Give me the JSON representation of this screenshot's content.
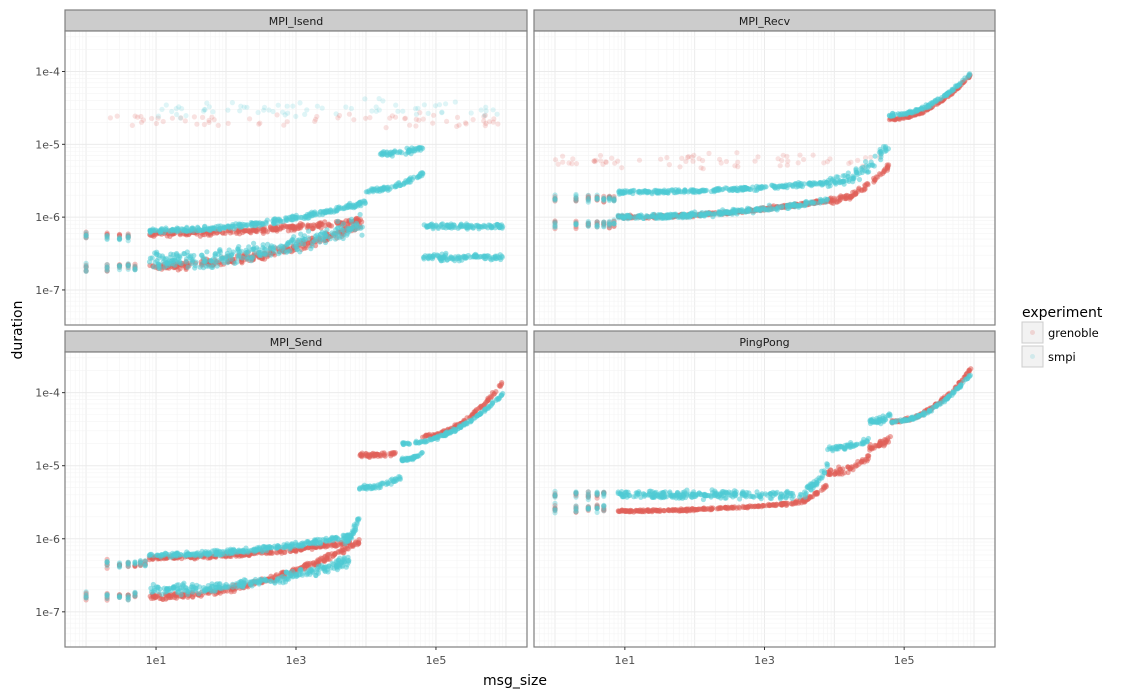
{
  "chart_data": {
    "type": "scatter",
    "title": "",
    "xlabel": "msg_size",
    "ylabel": "duration",
    "x_scale": "log10",
    "y_scale": "log10",
    "xlim": [
      0.5,
      2000000
    ],
    "ylim": [
      3.3e-08,
      0.00036
    ],
    "x_ticks": [
      {
        "value": 10,
        "label": "1e1"
      },
      {
        "value": 1000,
        "label": "1e3"
      },
      {
        "value": 100000,
        "label": "1e5"
      }
    ],
    "y_ticks": [
      {
        "value": 0.0001,
        "label": "1e-4"
      },
      {
        "value": 1e-05,
        "label": "1e-5"
      },
      {
        "value": 1e-06,
        "label": "1e-6"
      },
      {
        "value": 1e-07,
        "label": "1e-7"
      }
    ],
    "grid": true,
    "legend": {
      "title": "experiment",
      "position": "right",
      "entries": [
        {
          "name": "grenoble",
          "color": "#E0605A"
        },
        {
          "name": "smpi",
          "color": "#4FCAD3"
        }
      ]
    },
    "facets": [
      {
        "name": "MPI_Isend",
        "bands": [
          {
            "series": "grenoble",
            "x_from": 8,
            "x_to": 9000,
            "y_from": 6e-07,
            "y_to": 9e-07,
            "spread": 0.06
          },
          {
            "series": "grenoble",
            "x_from": 8,
            "x_to": 9000,
            "y_from": 2.1e-07,
            "y_to": 8e-07,
            "spread": 0.08
          },
          {
            "series": "grenoble",
            "x_from": 2,
            "x_to": 900000,
            "y_from": 2.1e-05,
            "y_to": 2.1e-05,
            "spread": 0.15,
            "sparse": true
          },
          {
            "series": "smpi",
            "x_from": 8,
            "x_to": 10000,
            "y_from": 6.5e-07,
            "y_to": 1.6e-06,
            "spread": 0.05
          },
          {
            "series": "smpi",
            "x_from": 8,
            "x_to": 9000,
            "y_from": 2.5e-07,
            "y_to": 8e-07,
            "spread": 0.18
          },
          {
            "series": "smpi",
            "x_from": 10000,
            "x_to": 65000,
            "y_from": 2.3e-06,
            "y_to": 4e-06,
            "spread": 0.05
          },
          {
            "series": "smpi",
            "x_from": 16000,
            "x_to": 65000,
            "y_from": 7.5e-06,
            "y_to": 9e-06,
            "spread": 0.05
          },
          {
            "series": "smpi",
            "x_from": 65000,
            "x_to": 900000,
            "y_from": 7.5e-07,
            "y_to": 7.5e-07,
            "spread": 0.05
          },
          {
            "series": "smpi",
            "x_from": 65000,
            "x_to": 900000,
            "y_from": 2.8e-07,
            "y_to": 2.8e-07,
            "spread": 0.06
          },
          {
            "series": "smpi",
            "x_from": 10,
            "x_to": 900000,
            "y_from": 3e-05,
            "y_to": 3e-05,
            "spread": 0.2,
            "sparse": true
          }
        ],
        "small_sizes": [
          {
            "x": 1,
            "y": 2e-07
          },
          {
            "x": 2,
            "y": 2e-07
          },
          {
            "x": 3,
            "y": 2.1e-07
          },
          {
            "x": 4,
            "y": 2.1e-07
          },
          {
            "x": 5,
            "y": 2.1e-07
          },
          {
            "x": 1,
            "y": 5.5e-07
          },
          {
            "x": 2,
            "y": 5.5e-07
          },
          {
            "x": 3,
            "y": 5.5e-07
          },
          {
            "x": 4,
            "y": 5.5e-07
          }
        ]
      },
      {
        "name": "MPI_Recv",
        "bands": [
          {
            "series": "grenoble",
            "x_from": 8,
            "x_to": 8000,
            "y_from": 1e-06,
            "y_to": 1.7e-06,
            "spread": 0.03
          },
          {
            "series": "grenoble",
            "x_from": 8000,
            "x_to": 60000,
            "y_from": 1.7e-06,
            "y_to": 5e-06,
            "spread": 0.06
          },
          {
            "series": "grenoble",
            "x_from": 60000,
            "x_to": 900000,
            "y_from": 2.2e-05,
            "y_to": 9e-05,
            "spread": 0.02
          },
          {
            "series": "smpi",
            "x_from": 8,
            "x_to": 8000,
            "y_from": 2.2e-06,
            "y_to": 3e-06,
            "spread": 0.04
          },
          {
            "series": "smpi",
            "x_from": 8,
            "x_to": 8000,
            "y_from": 1e-06,
            "y_to": 1.7e-06,
            "spread": 0.05
          },
          {
            "series": "smpi",
            "x_from": 8000,
            "x_to": 60000,
            "y_from": 3e-06,
            "y_to": 1e-05,
            "spread": 0.12
          },
          {
            "series": "smpi",
            "x_from": 60000,
            "x_to": 900000,
            "y_from": 2.5e-05,
            "y_to": 9.5e-05,
            "spread": 0.03
          },
          {
            "series": "grenoble",
            "x_from": 1,
            "x_to": 50000,
            "y_from": 6e-06,
            "y_to": 6e-06,
            "spread": 0.15,
            "sparse": true
          }
        ],
        "small_sizes": [
          {
            "x": 1,
            "y": 1.8e-06
          },
          {
            "x": 2,
            "y": 1.8e-06
          },
          {
            "x": 3,
            "y": 1.8e-06
          },
          {
            "x": 4,
            "y": 1.8e-06
          },
          {
            "x": 5,
            "y": 1.8e-06
          },
          {
            "x": 6,
            "y": 1.8e-06
          },
          {
            "x": 7,
            "y": 1.8e-06
          },
          {
            "x": 1,
            "y": 8e-07
          },
          {
            "x": 2,
            "y": 8e-07
          },
          {
            "x": 3,
            "y": 8e-07
          },
          {
            "x": 4,
            "y": 8e-07
          },
          {
            "x": 5,
            "y": 8e-07
          },
          {
            "x": 6,
            "y": 8e-07
          },
          {
            "x": 7,
            "y": 8e-07
          }
        ]
      },
      {
        "name": "MPI_Send",
        "bands": [
          {
            "series": "grenoble",
            "x_from": 8,
            "x_to": 6000,
            "y_from": 5.5e-07,
            "y_to": 9e-07,
            "spread": 0.04
          },
          {
            "series": "grenoble",
            "x_from": 8,
            "x_to": 8000,
            "y_from": 1.6e-07,
            "y_to": 9e-07,
            "spread": 0.06
          },
          {
            "series": "grenoble",
            "x_from": 8000,
            "x_to": 30000,
            "y_from": 1.4e-05,
            "y_to": 1.5e-05,
            "spread": 0.04
          },
          {
            "series": "grenoble",
            "x_from": 60000,
            "x_to": 900000,
            "y_from": 2.5e-05,
            "y_to": 0.00014,
            "spread": 0.04
          },
          {
            "series": "smpi",
            "x_from": 8,
            "x_to": 6000,
            "y_from": 6e-07,
            "y_to": 1.1e-06,
            "spread": 0.05
          },
          {
            "series": "smpi",
            "x_from": 8,
            "x_to": 6000,
            "y_from": 2e-07,
            "y_to": 5e-07,
            "spread": 0.1
          },
          {
            "series": "smpi",
            "x_from": 5000,
            "x_to": 8000,
            "y_from": 1e-06,
            "y_to": 2e-06,
            "spread": 0.08
          },
          {
            "series": "smpi",
            "x_from": 8000,
            "x_to": 32000,
            "y_from": 5e-06,
            "y_to": 7e-06,
            "spread": 0.05
          },
          {
            "series": "smpi",
            "x_from": 32000,
            "x_to": 65000,
            "y_from": 1.2e-05,
            "y_to": 1.5e-05,
            "spread": 0.03
          },
          {
            "series": "smpi",
            "x_from": 32000,
            "x_to": 900000,
            "y_from": 2e-05,
            "y_to": 9.5e-05,
            "spread": 0.03
          }
        ],
        "small_sizes": [
          {
            "x": 1,
            "y": 1.6e-07
          },
          {
            "x": 2,
            "y": 1.6e-07
          },
          {
            "x": 3,
            "y": 1.6e-07
          },
          {
            "x": 4,
            "y": 1.6e-07
          },
          {
            "x": 5,
            "y": 1.7e-07
          },
          {
            "x": 2,
            "y": 4.5e-07
          },
          {
            "x": 3,
            "y": 4.5e-07
          },
          {
            "x": 4,
            "y": 4.5e-07
          },
          {
            "x": 5,
            "y": 4.5e-07
          },
          {
            "x": 6,
            "y": 4.5e-07
          },
          {
            "x": 7,
            "y": 4.5e-07
          }
        ]
      },
      {
        "name": "PingPong",
        "bands": [
          {
            "series": "grenoble",
            "x_from": 8,
            "x_to": 2000,
            "y_from": 2.4e-06,
            "y_to": 3e-06,
            "spread": 0.02
          },
          {
            "series": "grenoble",
            "x_from": 2000,
            "x_to": 8000,
            "y_from": 3e-06,
            "y_to": 5.5e-06,
            "spread": 0.04
          },
          {
            "series": "grenoble",
            "x_from": 8000,
            "x_to": 32000,
            "y_from": 8e-06,
            "y_to": 1.3e-05,
            "spread": 0.08
          },
          {
            "series": "grenoble",
            "x_from": 32000,
            "x_to": 65000,
            "y_from": 1.8e-05,
            "y_to": 2.5e-05,
            "spread": 0.06
          },
          {
            "series": "grenoble",
            "x_from": 65000,
            "x_to": 900000,
            "y_from": 4e-05,
            "y_to": 0.00021,
            "spread": 0.03
          },
          {
            "series": "smpi",
            "x_from": 8,
            "x_to": 4000,
            "y_from": 4e-06,
            "y_to": 4e-06,
            "spread": 0.08
          },
          {
            "series": "smpi",
            "x_from": 4000,
            "x_to": 8000,
            "y_from": 5e-06,
            "y_to": 1e-05,
            "spread": 0.08
          },
          {
            "series": "smpi",
            "x_from": 8000,
            "x_to": 32000,
            "y_from": 1.7e-05,
            "y_to": 2.3e-05,
            "spread": 0.06
          },
          {
            "series": "smpi",
            "x_from": 32000,
            "x_to": 65000,
            "y_from": 4e-05,
            "y_to": 5e-05,
            "spread": 0.06
          },
          {
            "series": "smpi",
            "x_from": 65000,
            "x_to": 900000,
            "y_from": 4e-05,
            "y_to": 0.00018,
            "spread": 0.03
          }
        ],
        "small_sizes": [
          {
            "x": 1,
            "y": 2.6e-06
          },
          {
            "x": 2,
            "y": 2.6e-06
          },
          {
            "x": 3,
            "y": 2.6e-06
          },
          {
            "x": 4,
            "y": 2.6e-06
          },
          {
            "x": 5,
            "y": 2.6e-06
          },
          {
            "x": 1,
            "y": 4e-06
          },
          {
            "x": 2,
            "y": 4e-06
          },
          {
            "x": 3,
            "y": 4e-06
          },
          {
            "x": 4,
            "y": 4e-06
          },
          {
            "x": 5,
            "y": 4e-06
          }
        ]
      }
    ]
  }
}
